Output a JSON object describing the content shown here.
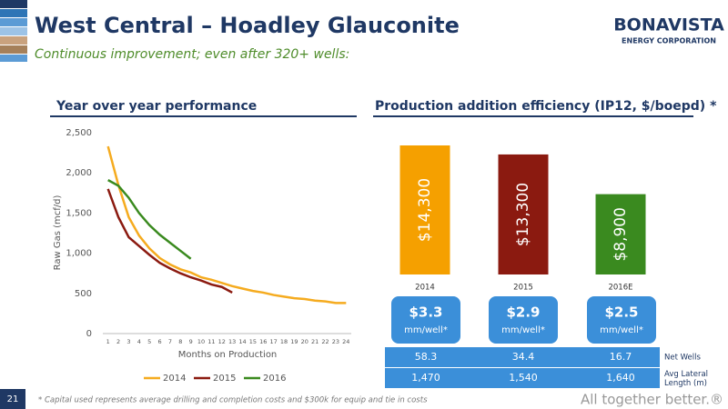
{
  "header": {
    "title": "West Central – Hoadley Glauconite",
    "subtitle": "Continuous improvement; even after 320+ wells:",
    "logo": "BONAVISTA",
    "logo_sub": "ENERGY CORPORATION"
  },
  "chart_data": [
    {
      "type": "line",
      "title": "Year over year performance",
      "y_label": "Raw Gas (mcf/d)",
      "x_label": "Months on Production",
      "x": [
        1,
        2,
        3,
        4,
        5,
        6,
        7,
        8,
        9,
        10,
        11,
        12,
        13,
        14,
        15,
        16,
        17,
        18,
        19,
        20,
        21,
        22,
        23,
        24
      ],
      "xlim": [
        0.5,
        24.5
      ],
      "xticks": [
        1,
        2,
        3,
        4,
        5,
        6,
        7,
        8,
        9,
        10,
        11,
        12,
        13,
        14,
        15,
        16,
        17,
        18,
        19,
        20,
        21,
        22,
        23,
        24
      ],
      "ylim": [
        0,
        2500
      ],
      "yticks": [
        0,
        500,
        {
          "value": 1000,
          "label": "1,000"
        },
        {
          "value": 1500,
          "label": "1,500"
        },
        {
          "value": 2000,
          "label": "2,000"
        },
        {
          "value": 2500,
          "label": "2,500"
        }
      ],
      "grid": false,
      "legend": "bottom",
      "series": [
        {
          "name": "2014",
          "color": "#f5ab1f",
          "values": [
            2330,
            1850,
            1450,
            1220,
            1060,
            940,
            860,
            800,
            760,
            700,
            670,
            630,
            590,
            560,
            530,
            510,
            480,
            460,
            440,
            430,
            410,
            400,
            380,
            380
          ]
        },
        {
          "name": "2015",
          "color": "#8b1a10",
          "values": [
            1800,
            1450,
            1200,
            1090,
            980,
            880,
            810,
            750,
            700,
            660,
            610,
            580,
            510,
            null,
            null,
            null,
            null,
            null,
            null,
            null,
            null,
            null,
            null,
            null
          ]
        },
        {
          "name": "2016",
          "color": "#3a8a1f",
          "values": [
            1910,
            1840,
            1690,
            1500,
            1350,
            1230,
            1130,
            1030,
            930,
            null,
            null,
            null,
            null,
            null,
            null,
            null,
            null,
            null,
            null,
            null,
            null,
            null,
            null,
            null
          ]
        }
      ]
    },
    {
      "type": "bar",
      "title": "Production addition efficiency (IP12, $/boepd) *",
      "categories": [
        "2014",
        "2015",
        "2016E"
      ],
      "values": [
        14300,
        13300,
        8900
      ],
      "value_labels": [
        "$14,300",
        "$13,300",
        "$8,900"
      ],
      "colors": [
        "#f5a000",
        "#8b1a10",
        "#3a8a1f"
      ]
    }
  ],
  "boxes": [
    {
      "value": "$3.3",
      "unit": "mm/well*"
    },
    {
      "value": "$2.9",
      "unit": "mm/well*"
    },
    {
      "value": "$2.5",
      "unit": "mm/well*"
    }
  ],
  "table": {
    "rows": [
      [
        "58.3",
        "34.4",
        "16.7",
        "Net Wells"
      ],
      [
        "1,470",
        "1,540",
        "1,640",
        "Avg Lateral Length (m)"
      ]
    ]
  },
  "footer": {
    "page": "21",
    "note": "* Capital used represents average drilling and completion costs and $300k for equip and tie in costs",
    "tagline": "All together better.®"
  }
}
